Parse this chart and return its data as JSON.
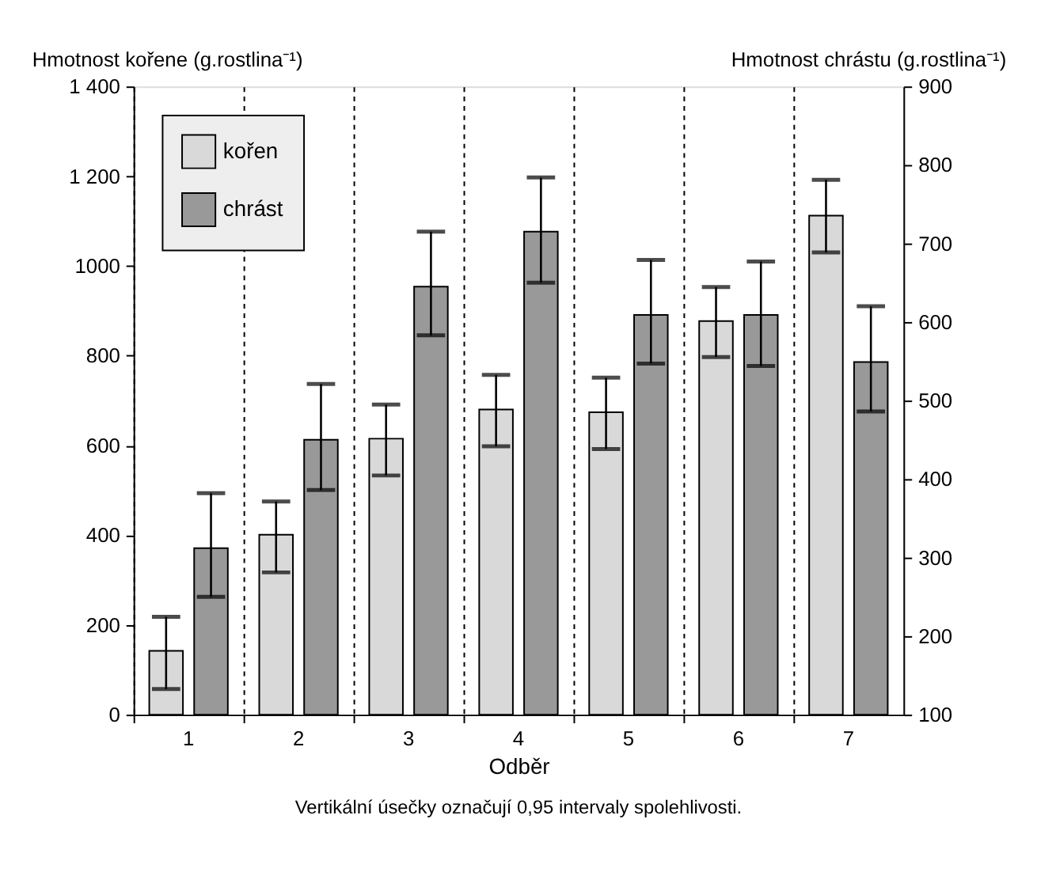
{
  "chart_data": {
    "type": "bar",
    "xlabel": "Odběr",
    "ylabel": "Hmotnost kořene (g.rostlina⁻¹)",
    "y2label": "Hmotnost chrástu (g.rostlina⁻¹)",
    "categories": [
      "1",
      "2",
      "3",
      "4",
      "5",
      "6",
      "7"
    ],
    "series": [
      {
        "name": "kořen",
        "color": "#d9d9d9",
        "values": [
          142,
          401,
          615,
          680,
          674,
          877,
          1112
        ],
        "errors": [
          [
            57,
            218
          ],
          [
            317,
            475
          ],
          [
            533,
            691
          ],
          [
            598,
            757
          ],
          [
            592,
            751
          ],
          [
            797,
            953
          ],
          [
            1030,
            1192
          ]
        ]
      },
      {
        "name": "chrást",
        "color": "#999999",
        "axis": "y2",
        "values": [
          312,
          450,
          645,
          715,
          609,
          609,
          549
        ],
        "errors": [
          [
            250,
            382
          ],
          [
            386,
            521
          ],
          [
            583,
            715
          ],
          [
            650,
            784
          ],
          [
            547,
            679
          ],
          [
            544,
            677
          ],
          [
            486,
            620
          ]
        ]
      }
    ],
    "ylim": [
      0,
      1400
    ],
    "yticks": [
      0,
      200,
      400,
      600,
      800,
      1000,
      {
        "value": 1200,
        "label": "1 200"
      },
      {
        "value": 1400,
        "label": "1 400"
      }
    ],
    "y2lim": [
      100,
      900
    ],
    "y2ticks": [
      100,
      200,
      300,
      400,
      500,
      600,
      700,
      800,
      900
    ],
    "grid": "x",
    "legend": "top left",
    "annotations": [
      "Vertikální úsečky označují 0,95 intervaly spolehlivosti."
    ]
  }
}
